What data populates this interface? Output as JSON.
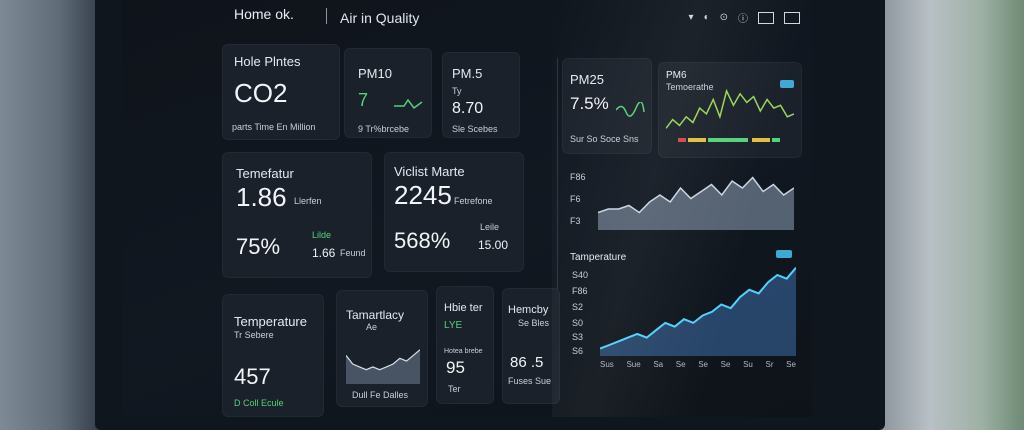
{
  "header": {
    "home": "Home ok.",
    "section": "Air in Quality"
  },
  "cards": {
    "co2": {
      "title": "Hole Plntes",
      "value": "CO2",
      "sub": "parts Time En Million"
    },
    "pm10": {
      "title": "PM10",
      "value": "7",
      "sub": "9 Tr%brcebe"
    },
    "pm15": {
      "title": "PM.5",
      "note": "Ty",
      "value": "8.70",
      "sub": "Sle Scebes"
    },
    "pm25": {
      "title": "PM25",
      "value": "7.5%",
      "sub": "Sur So Soce Sns"
    },
    "pm6": {
      "title": "PM6",
      "sub": "Temoerathe",
      "badge": ""
    },
    "temp1": {
      "title": "Temefatur",
      "value": "1.86",
      "unit": "Llerfen",
      "pct": "75%",
      "mini_label": "Lilde",
      "mini_value": "1.66",
      "mini_unit": "Feund"
    },
    "vm": {
      "title": "Viclist Marte",
      "value": "2245",
      "unit": "Fetrefone",
      "pct": "568%",
      "mini_label": "Leile",
      "mini_value": "15.00"
    },
    "temp2": {
      "title": "Temperature",
      "sub": "Tr Sebere",
      "value": "457",
      "foot": "D Coll Ecule"
    },
    "tf": {
      "title": "Tamartlacy",
      "note": "Ae",
      "foot": "Dull Fe Dalles"
    },
    "hb": {
      "title": "Hbie ter",
      "value1": "LYE",
      "sub1": "Hotea brebe",
      "value": "95",
      "sub": "Ter"
    },
    "hm": {
      "title": "Hemcby",
      "sub": "Se Bles",
      "value": "86 .5",
      "foot": "Fuses Sue"
    },
    "chart1": {
      "y_ticks": [
        "F86",
        "F6",
        "F3"
      ]
    },
    "chart2": {
      "title": "Tamperature",
      "y_ticks": [
        "S40",
        "F86",
        "S2",
        "S0",
        "S3",
        "S6"
      ],
      "x_ticks": [
        "Sus",
        "Sue",
        "Sa",
        "Se",
        "Se",
        "Se",
        "Su",
        "Sr",
        "Se"
      ]
    }
  },
  "chart_data": [
    {
      "type": "line",
      "series": [
        {
          "values": [
            2,
            5,
            3,
            6,
            4,
            9,
            7,
            12,
            6,
            15,
            10,
            14,
            11,
            13,
            8,
            12,
            9,
            10,
            6,
            7
          ]
        }
      ],
      "ylim": [
        0,
        16
      ]
    },
    {
      "type": "area",
      "series": [
        {
          "values": [
            5,
            6,
            6,
            7,
            5,
            8,
            10,
            8,
            12,
            9,
            11,
            13,
            10,
            14,
            12,
            15,
            11,
            13,
            10,
            12
          ]
        }
      ],
      "ylim": [
        0,
        16
      ]
    },
    {
      "type": "area",
      "series": [
        {
          "values": [
            2,
            3,
            4,
            5,
            6,
            5,
            7,
            9,
            8,
            10,
            9,
            11,
            12,
            14,
            13,
            16,
            18,
            17,
            20,
            22,
            21,
            24
          ]
        }
      ],
      "ylim": [
        0,
        25
      ]
    },
    {
      "type": "area",
      "series": [
        {
          "values": [
            10,
            7,
            6,
            5,
            6,
            5,
            6,
            7,
            9,
            8,
            10,
            12
          ]
        }
      ],
      "ylim": [
        0,
        14
      ]
    }
  ]
}
